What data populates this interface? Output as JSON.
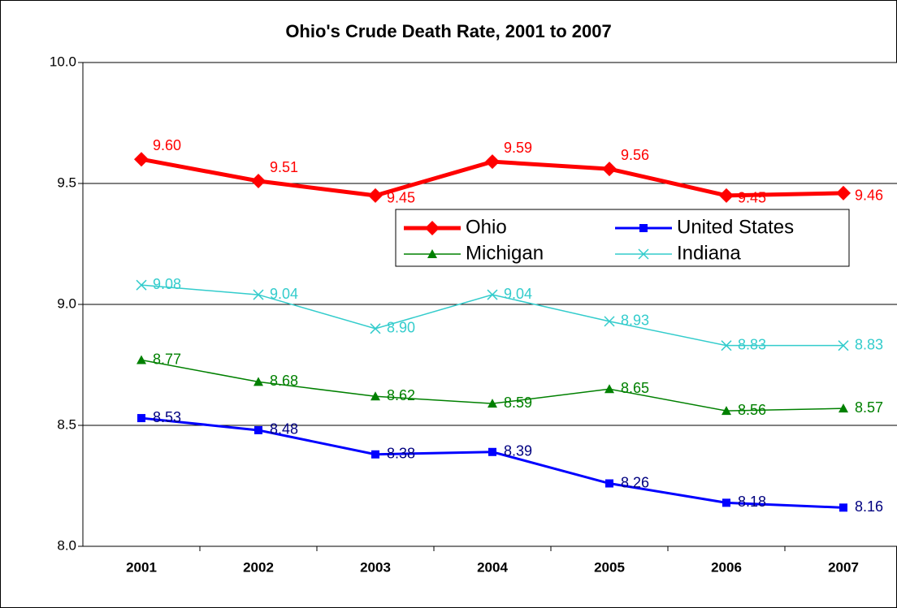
{
  "chart_data": {
    "type": "line",
    "title": "Ohio's Crude Death Rate, 2001 to 2007",
    "categories": [
      "2001",
      "2002",
      "2003",
      "2004",
      "2005",
      "2006",
      "2007"
    ],
    "series": [
      {
        "name": "Ohio",
        "color": "#ff0000",
        "marker": "diamond",
        "values": [
          9.6,
          9.51,
          9.45,
          9.59,
          9.56,
          9.45,
          9.46
        ],
        "value_labels": [
          "9.60",
          "9.51",
          "9.45",
          "9.59",
          "9.56",
          "9.45",
          "9.46"
        ]
      },
      {
        "name": "United States",
        "color": "#0000ff",
        "marker": "square",
        "values": [
          8.53,
          8.48,
          8.38,
          8.39,
          8.26,
          8.18,
          8.16
        ],
        "value_labels": [
          "8.53",
          "8.48",
          "8.38",
          "8.39",
          "8.26",
          "8.18",
          "8.16"
        ]
      },
      {
        "name": "Michigan",
        "color": "#008000",
        "marker": "triangle",
        "values": [
          8.77,
          8.68,
          8.62,
          8.59,
          8.65,
          8.56,
          8.57
        ],
        "value_labels": [
          "8.77",
          "8.68",
          "8.62",
          "8.59",
          "8.65",
          "8.56",
          "8.57"
        ]
      },
      {
        "name": "Indiana",
        "color": "#33cccc",
        "marker": "x",
        "values": [
          9.08,
          9.04,
          8.9,
          9.04,
          8.93,
          8.83,
          8.83
        ],
        "value_labels": [
          "9.08",
          "9.04",
          "8.90",
          "9.04",
          "8.93",
          "8.83",
          "8.83"
        ]
      }
    ],
    "ylim": [
      8.0,
      10.0
    ],
    "yticks": [
      {
        "value": 8.0,
        "label": "8.0"
      },
      {
        "value": 8.5,
        "label": "8.5"
      },
      {
        "value": 9.0,
        "label": "9.0"
      },
      {
        "value": 9.5,
        "label": "9.5"
      },
      {
        "value": 10.0,
        "label": "10.0"
      }
    ],
    "grid": true
  }
}
